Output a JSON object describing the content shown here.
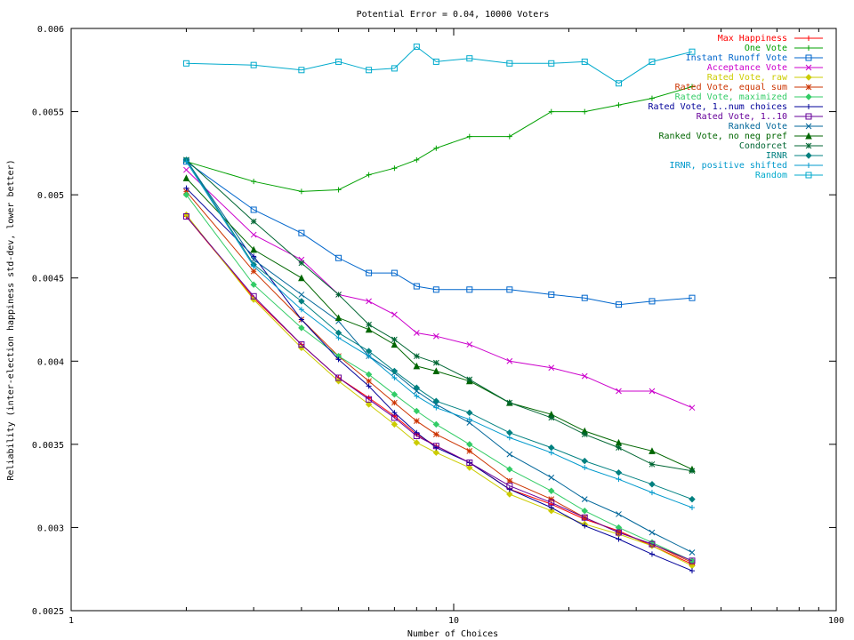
{
  "chart_data": {
    "type": "line",
    "title": "Potential Error = 0.04, 10000 Voters",
    "xlabel": "Number of Choices",
    "ylabel": "Reliability (inter-election happiness std-dev, lower better)",
    "x_scale": "log",
    "xlim": [
      1,
      100
    ],
    "ylim": [
      0.0025,
      0.006
    ],
    "x_ticks": [
      1,
      10,
      100
    ],
    "y_ticks": [
      0.0025,
      0.003,
      0.0035,
      0.004,
      0.0045,
      0.005,
      0.0055,
      0.006
    ],
    "legend_position": "top-right",
    "x": [
      2,
      3,
      4,
      5,
      6,
      7,
      8,
      9,
      11,
      14,
      18,
      22,
      27,
      33,
      42
    ],
    "series": [
      {
        "name": "Max Happiness",
        "color": "#ff0000",
        "marker": "plus",
        "values": [
          0.00487,
          0.00438,
          0.0041,
          0.0039,
          0.00378,
          0.00367,
          0.00356,
          0.00349,
          0.00339,
          0.00323,
          0.00314,
          0.00305,
          0.00298,
          0.00289,
          0.00278
        ]
      },
      {
        "name": "One Vote",
        "color": "#00a000",
        "marker": "plus",
        "values": [
          0.0052,
          0.00508,
          0.00502,
          0.00503,
          0.00512,
          0.00516,
          0.00521,
          0.00528,
          0.00535,
          0.00535,
          0.0055,
          0.0055,
          0.00554,
          0.00558,
          0.00565
        ]
      },
      {
        "name": "Instant Runoff Vote",
        "color": "#0066cc",
        "marker": "square",
        "values": [
          0.0052,
          0.00491,
          0.00477,
          0.00462,
          0.00453,
          0.00453,
          0.00445,
          0.00443,
          0.00443,
          0.00443,
          0.0044,
          0.00438,
          0.00434,
          0.00436,
          0.00438
        ]
      },
      {
        "name": "Acceptance Vote",
        "color": "#cc00cc",
        "marker": "x",
        "values": [
          0.00515,
          0.00476,
          0.00461,
          0.0044,
          0.00436,
          0.00428,
          0.00417,
          0.00415,
          0.0041,
          0.004,
          0.00396,
          0.00391,
          0.00382,
          0.00382,
          0.00372
        ]
      },
      {
        "name": "Rated Vote, raw",
        "color": "#cccc00",
        "marker": "diamond",
        "values": [
          0.00488,
          0.00437,
          0.00408,
          0.00388,
          0.00374,
          0.00362,
          0.00351,
          0.00345,
          0.00336,
          0.0032,
          0.0031,
          0.00302,
          0.00296,
          0.00289,
          0.00277
        ]
      },
      {
        "name": "Rated Vote, equal sum",
        "color": "#cc3300",
        "marker": "star",
        "values": [
          0.00502,
          0.00454,
          0.00425,
          0.00403,
          0.00388,
          0.00375,
          0.00364,
          0.00356,
          0.00346,
          0.00328,
          0.00317,
          0.00306,
          0.00297,
          0.0029,
          0.00279
        ]
      },
      {
        "name": "Rated Vote, maximized",
        "color": "#33cc66",
        "marker": "diamond",
        "values": [
          0.005,
          0.00446,
          0.0042,
          0.00403,
          0.00392,
          0.0038,
          0.0037,
          0.00362,
          0.0035,
          0.00335,
          0.00322,
          0.0031,
          0.003,
          0.00291,
          0.0028
        ]
      },
      {
        "name": "Rated Vote, 1..num choices",
        "color": "#000099",
        "marker": "plus",
        "values": [
          0.00504,
          0.00463,
          0.00425,
          0.00401,
          0.00385,
          0.00369,
          0.00357,
          0.00348,
          0.00339,
          0.00323,
          0.00312,
          0.00301,
          0.00293,
          0.00284,
          0.00274
        ]
      },
      {
        "name": "Rated Vote, 1..10",
        "color": "#660099",
        "marker": "square",
        "values": [
          0.00487,
          0.00439,
          0.0041,
          0.0039,
          0.00377,
          0.00366,
          0.00355,
          0.00349,
          0.00339,
          0.00325,
          0.00315,
          0.00306,
          0.00297,
          0.0029,
          0.0028
        ]
      },
      {
        "name": "Ranked Vote",
        "color": "#006699",
        "marker": "x",
        "values": [
          0.00521,
          0.00461,
          0.0044,
          0.00424,
          0.00403,
          0.00393,
          0.00382,
          0.00374,
          0.00363,
          0.00344,
          0.0033,
          0.00317,
          0.00308,
          0.00297,
          0.00285
        ]
      },
      {
        "name": "Ranked Vote, no neg pref",
        "color": "#006600",
        "marker": "triangle",
        "values": [
          0.0051,
          0.00467,
          0.0045,
          0.00426,
          0.00419,
          0.0041,
          0.00397,
          0.00394,
          0.00388,
          0.00375,
          0.00368,
          0.00358,
          0.00351,
          0.00346,
          0.00335
        ]
      },
      {
        "name": "Condorcet",
        "color": "#006633",
        "marker": "star",
        "values": [
          0.00521,
          0.00484,
          0.00459,
          0.0044,
          0.00422,
          0.00413,
          0.00403,
          0.00399,
          0.00389,
          0.00375,
          0.00366,
          0.00356,
          0.00348,
          0.00338,
          0.00334
        ]
      },
      {
        "name": "IRNR",
        "color": "#008080",
        "marker": "diamond",
        "values": [
          0.00521,
          0.00458,
          0.00436,
          0.00417,
          0.00406,
          0.00394,
          0.00384,
          0.00376,
          0.00369,
          0.00357,
          0.00348,
          0.0034,
          0.00333,
          0.00326,
          0.00317
        ]
      },
      {
        "name": "IRNR, positive shifted",
        "color": "#0099cc",
        "marker": "plus",
        "values": [
          0.0052,
          0.00457,
          0.00431,
          0.00414,
          0.00403,
          0.0039,
          0.00379,
          0.00372,
          0.00365,
          0.00354,
          0.00345,
          0.00336,
          0.00329,
          0.00321,
          0.00312
        ]
      },
      {
        "name": "Random",
        "color": "#00aacc",
        "marker": "square",
        "values": [
          0.00579,
          0.00578,
          0.00575,
          0.0058,
          0.00575,
          0.00576,
          0.00589,
          0.0058,
          0.00582,
          0.00579,
          0.00579,
          0.0058,
          0.00567,
          0.0058,
          0.00586
        ]
      }
    ]
  }
}
